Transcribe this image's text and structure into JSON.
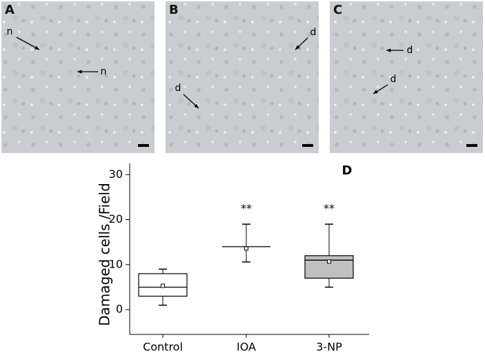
{
  "panels": [
    {
      "label": "A",
      "annotations": [
        "n",
        "n"
      ]
    },
    {
      "label": "B",
      "annotations": [
        "d",
        "d"
      ]
    },
    {
      "label": "C",
      "annotations": [
        "d",
        "d"
      ]
    }
  ],
  "chart_data": {
    "type": "box",
    "label": "D",
    "ylabel": "Damaged cells /Field",
    "categories": [
      "Control",
      "IOA",
      "3-NP"
    ],
    "series": [
      {
        "name": "Control",
        "color": "#ffffff",
        "whisker_low": 1,
        "q1": 3,
        "median": 5,
        "q3": 8,
        "whisker_high": 9,
        "mean": 5.3
      },
      {
        "name": "IOA",
        "color": "#ffffff",
        "whisker_low": 10.6,
        "q1": 14,
        "median": 14,
        "q3": 14,
        "whisker_high": 19,
        "mean": 13.6
      },
      {
        "name": "3-NP",
        "color": "#c0c0c0",
        "whisker_low": 5,
        "q1": 7,
        "median": 11,
        "q3": 12,
        "whisker_high": 19,
        "mean": 10.7
      }
    ],
    "annotations": [
      null,
      "**",
      "**"
    ],
    "ylim": [
      -5.5,
      32.5
    ],
    "yticks": [
      0,
      10,
      20,
      30
    ]
  }
}
